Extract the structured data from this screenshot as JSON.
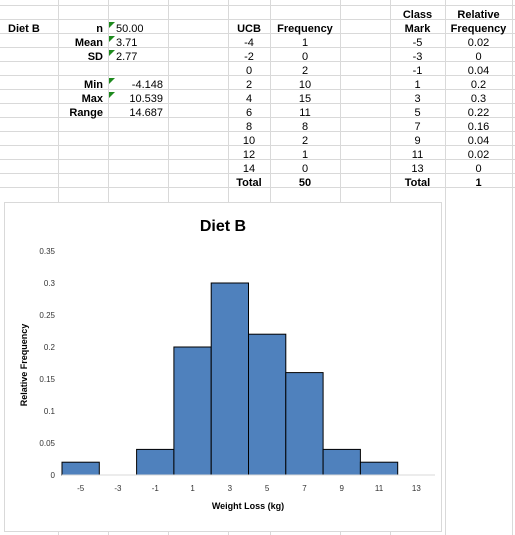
{
  "stats": {
    "label": "Diet B",
    "rows": [
      {
        "label": "n",
        "value": "50.00",
        "flag": true
      },
      {
        "label": "Mean",
        "value": "3.71",
        "flag": true
      },
      {
        "label": "SD",
        "value": "2.77",
        "flag": true
      },
      {
        "label": "",
        "value": "",
        "flag": false
      },
      {
        "label": "Min",
        "value": "-4.148",
        "flag": true
      },
      {
        "label": "Max",
        "value": "10.539",
        "flag": true
      },
      {
        "label": "Range",
        "value": "14.687",
        "flag": false
      }
    ]
  },
  "table": {
    "headers": {
      "ucb": "UCB",
      "freq": "Frequency",
      "mark_top": "Class",
      "mark_bottom": "Mark",
      "rel_top": "Relative",
      "rel_bottom": "Frequency"
    },
    "rows": [
      {
        "ucb": "-4",
        "freq": "1",
        "mark": "-5",
        "rel": "0.02"
      },
      {
        "ucb": "-2",
        "freq": "0",
        "mark": "-3",
        "rel": "0"
      },
      {
        "ucb": "0",
        "freq": "2",
        "mark": "-1",
        "rel": "0.04"
      },
      {
        "ucb": "2",
        "freq": "10",
        "mark": "1",
        "rel": "0.2"
      },
      {
        "ucb": "4",
        "freq": "15",
        "mark": "3",
        "rel": "0.3"
      },
      {
        "ucb": "6",
        "freq": "11",
        "mark": "5",
        "rel": "0.22"
      },
      {
        "ucb": "8",
        "freq": "8",
        "mark": "7",
        "rel": "0.16"
      },
      {
        "ucb": "10",
        "freq": "2",
        "mark": "9",
        "rel": "0.04"
      },
      {
        "ucb": "12",
        "freq": "1",
        "mark": "11",
        "rel": "0.02"
      },
      {
        "ucb": "14",
        "freq": "0",
        "mark": "13",
        "rel": "0"
      }
    ],
    "total_label": "Total",
    "total_freq": "50",
    "total_label_2": "Total",
    "total_rel": "1"
  },
  "colors": {
    "bar": "#4f81bd",
    "bar_stroke": "#000000",
    "grid": "#d9d9d9",
    "flag": "#1e8a1e"
  },
  "chart_data": {
    "type": "bar",
    "title": "Diet B",
    "xlabel": "Weight Loss (kg)",
    "ylabel": "Relative Frequency",
    "categories": [
      "-5",
      "-3",
      "-1",
      "1",
      "3",
      "5",
      "7",
      "9",
      "11",
      "13"
    ],
    "values": [
      0.02,
      0,
      0.04,
      0.2,
      0.3,
      0.22,
      0.16,
      0.04,
      0.02,
      0
    ],
    "ylim": [
      0,
      0.35
    ],
    "yticks": [
      "0",
      "0.05",
      "0.1",
      "0.15",
      "0.2",
      "0.25",
      "0.3",
      "0.35"
    ],
    "grid": false,
    "legend": "none"
  }
}
